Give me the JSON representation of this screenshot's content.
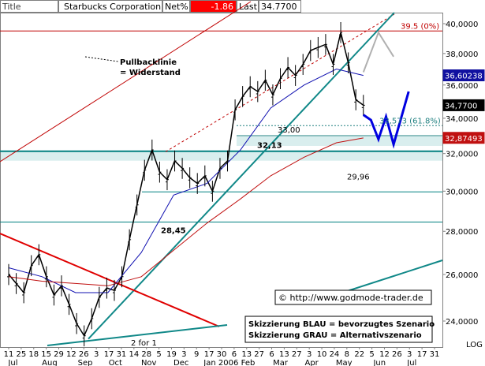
{
  "header": {
    "title_label": "Title",
    "title_value": "Starbucks Corporation",
    "netpct_label": "Net%",
    "netpct_value": "-1.86",
    "last_label": "Last",
    "last_value": "34.7700"
  },
  "chart_data": {
    "type": "line",
    "title": "Starbucks Corporation",
    "y_scale": "log",
    "ylim": [
      23.0,
      41.0
    ],
    "y_ticks": [
      "40,0000",
      "38,0000",
      "36,0000",
      "34,0000",
      "32,0000",
      "30,0000",
      "28,0000",
      "26,0000",
      "24,0000"
    ],
    "y_tick_values": [
      40,
      38,
      36,
      34,
      32,
      30,
      28,
      26,
      24
    ],
    "y_axis_label": "LOG",
    "x_tick_labels": [
      "11",
      "25",
      "18",
      "15",
      "29",
      "12",
      "26",
      "3",
      "17",
      "31",
      "14",
      "28",
      "5",
      "19",
      "3",
      "9",
      "17",
      "30",
      "6",
      "13",
      "27",
      "6",
      "13",
      "27",
      "3",
      "10",
      "24",
      "8",
      "22",
      "5",
      "12",
      "26",
      "3",
      "17",
      "31"
    ],
    "x_month_labels": [
      "Jul",
      "Aug",
      "Sep",
      "Oct",
      "Nov",
      "Dec",
      "Jan 2006",
      "Feb",
      "Mar",
      "Apr",
      "May",
      "Jun",
      "Jul"
    ],
    "price_labels": [
      {
        "text": "36,60238",
        "value": 36.60238,
        "style": "blue"
      },
      {
        "text": "34,7700",
        "value": 34.77,
        "style": "black"
      },
      {
        "text": "32,87493",
        "value": 32.87493,
        "style": "red"
      }
    ],
    "level_lines": [
      {
        "value": 39.5,
        "label": "39.5 (0%)"
      },
      {
        "value": 33.573,
        "label": "33,573 (61.8%)"
      },
      {
        "value": 33.0,
        "label": "33,00"
      },
      {
        "value": 32.13,
        "label": "32,13"
      },
      {
        "value": 29.96,
        "label": "29,96"
      },
      {
        "value": 28.45,
        "label": "28,45"
      }
    ],
    "annotations": [
      "Pullbacklinie",
      "= Widerstand",
      "2 for 1",
      "© http://www.godmode-trader.de",
      "Skizzierung BLAU = bevorzugtes Szenario",
      "Skizzierung GRAU = Alternativszenario"
    ],
    "series": [
      {
        "name": "Kurs",
        "color": "#000000",
        "x": [
          "2005-07-01",
          "2005-07-08",
          "2005-07-15",
          "2005-07-22",
          "2005-07-29",
          "2005-08-05",
          "2005-08-12",
          "2005-08-19",
          "2005-08-26",
          "2005-09-02",
          "2005-09-09",
          "2005-09-16",
          "2005-09-23",
          "2005-09-30",
          "2005-10-07",
          "2005-10-14",
          "2005-10-21",
          "2005-10-28",
          "2005-11-04",
          "2005-11-11",
          "2005-11-18",
          "2005-11-25",
          "2005-12-02",
          "2005-12-09",
          "2005-12-16",
          "2005-12-23",
          "2005-12-30",
          "2006-01-06",
          "2006-01-13",
          "2006-01-20",
          "2006-01-27",
          "2006-02-03",
          "2006-02-10",
          "2006-02-17",
          "2006-02-24",
          "2006-03-03",
          "2006-03-10",
          "2006-03-17",
          "2006-03-24",
          "2006-03-31",
          "2006-04-07",
          "2006-04-14",
          "2006-04-21",
          "2006-04-28",
          "2006-05-05",
          "2006-05-12",
          "2006-05-19",
          "2006-05-26"
        ],
        "values": [
          26.0,
          25.6,
          25.2,
          26.4,
          26.9,
          25.9,
          25.1,
          25.5,
          24.7,
          23.9,
          23.4,
          24.1,
          25.0,
          25.4,
          25.3,
          25.9,
          27.6,
          29.3,
          31.1,
          32.2,
          31.0,
          30.6,
          31.6,
          31.2,
          30.7,
          30.4,
          30.8,
          30.0,
          31.2,
          31.6,
          34.5,
          35.3,
          35.9,
          35.6,
          36.3,
          35.4,
          36.4,
          37.1,
          36.6,
          37.3,
          38.2,
          38.4,
          38.6,
          37.3,
          39.4,
          37.4,
          35.1,
          34.77
        ]
      },
      {
        "name": "GD blau",
        "color": "#1010b0",
        "x": [
          "2005-07-01",
          "2005-08-01",
          "2005-09-01",
          "2005-10-01",
          "2005-11-01",
          "2005-12-01",
          "2006-01-01",
          "2006-02-01",
          "2006-03-01",
          "2006-04-01",
          "2006-05-01",
          "2006-05-26"
        ],
        "values": [
          26.3,
          25.9,
          25.2,
          25.2,
          27.0,
          29.8,
          30.4,
          32.2,
          34.6,
          36.0,
          37.0,
          36.6
        ]
      },
      {
        "name": "GD rot",
        "color": "#c01010",
        "x": [
          "2005-07-01",
          "2005-08-01",
          "2005-09-01",
          "2005-10-01",
          "2005-11-01",
          "2005-12-01",
          "2006-01-01",
          "2006-02-01",
          "2006-03-01",
          "2006-04-01",
          "2006-05-01",
          "2006-05-26"
        ],
        "values": [
          25.9,
          25.7,
          25.6,
          25.5,
          25.9,
          27.1,
          28.4,
          29.6,
          30.8,
          31.8,
          32.6,
          32.87
        ]
      }
    ],
    "scenarios": [
      {
        "name": "Skizzierung BLAU",
        "color": "#0000e0",
        "x": [
          "2006-05-26",
          "2006-06-02",
          "2006-06-09",
          "2006-06-16",
          "2006-06-23",
          "2006-07-07"
        ],
        "values": [
          34.2,
          33.9,
          32.8,
          34.1,
          32.5,
          35.6
        ]
      },
      {
        "name": "Skizzierung GRAU",
        "color": "#b0b0b0",
        "x": [
          "2006-05-26",
          "2006-06-09",
          "2006-06-23"
        ],
        "values": [
          36.8,
          39.4,
          37.8
        ]
      }
    ]
  }
}
